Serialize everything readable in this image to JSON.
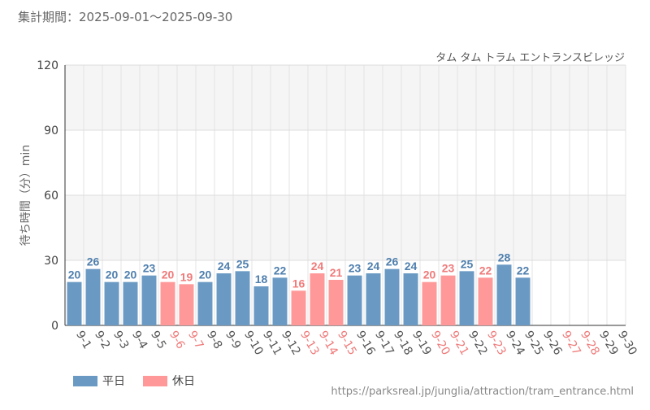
{
  "header": {
    "period": "集計期間：2025-09-01～2025-09-30",
    "attraction": "タム タム トラム エントランスビレッジ"
  },
  "legend": {
    "weekday_label": "平日",
    "holiday_label": "休日"
  },
  "source_url": "https://parksreal.jp/junglia/attraction/tram_entrance.html",
  "colors": {
    "weekday": "#6a9ac4",
    "holiday": "#ff9999",
    "weekday_text": "#4f7fae",
    "holiday_text": "#f07a7a",
    "tick_weekday": "#555555",
    "tick_holiday": "#f07a7a"
  },
  "chart_data": {
    "type": "bar",
    "ylabel": "待ち時間（分）min",
    "ylim": [
      0,
      120
    ],
    "yticks": [
      0,
      30,
      60,
      90,
      120
    ],
    "grid": true,
    "categories": [
      "9-1",
      "9-2",
      "9-3",
      "9-4",
      "9-5",
      "9-6",
      "9-7",
      "9-8",
      "9-9",
      "9-10",
      "9-11",
      "9-12",
      "9-13",
      "9-14",
      "9-15",
      "9-16",
      "9-17",
      "9-18",
      "9-19",
      "9-20",
      "9-21",
      "9-22",
      "9-23",
      "9-24",
      "9-25",
      "9-26",
      "9-27",
      "9-28",
      "9-29",
      "9-30"
    ],
    "values": [
      20,
      26,
      20,
      20,
      23,
      20,
      19,
      20,
      24,
      25,
      18,
      22,
      16,
      24,
      21,
      23,
      24,
      26,
      24,
      20,
      23,
      25,
      22,
      28,
      22,
      null,
      null,
      null,
      null,
      null
    ],
    "day_type": [
      "weekday",
      "weekday",
      "weekday",
      "weekday",
      "weekday",
      "holiday",
      "holiday",
      "weekday",
      "weekday",
      "weekday",
      "weekday",
      "weekday",
      "holiday",
      "holiday",
      "holiday",
      "weekday",
      "weekday",
      "weekday",
      "weekday",
      "holiday",
      "holiday",
      "weekday",
      "holiday",
      "weekday",
      "weekday",
      "weekday",
      "holiday",
      "holiday",
      "weekday",
      "weekday"
    ]
  }
}
